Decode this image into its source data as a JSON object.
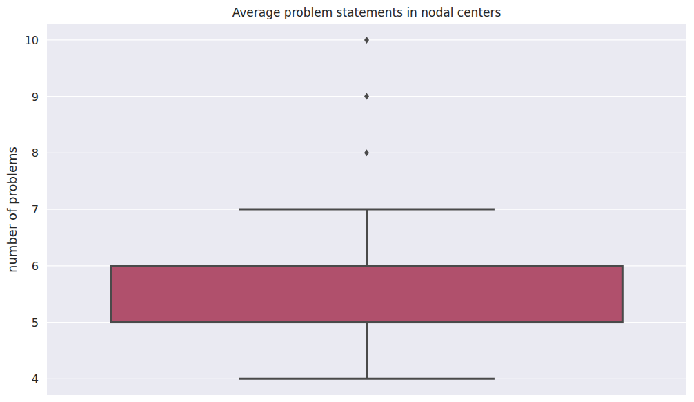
{
  "chart_data": {
    "type": "box",
    "title": "Average problem statements in nodal centers",
    "y_label": "number of problems",
    "boxes": [
      {
        "whisker_low": 4,
        "q1": 5,
        "median": 5,
        "q3": 6,
        "whisker_high": 7,
        "outliers": [
          8,
          9,
          10
        ]
      }
    ],
    "color": "#b0506c",
    "ylim": [
      3.71,
      10.28
    ],
    "yticks": [
      4,
      5,
      6,
      7,
      8,
      9,
      10
    ],
    "grid": true,
    "tick_labels": "y"
  }
}
